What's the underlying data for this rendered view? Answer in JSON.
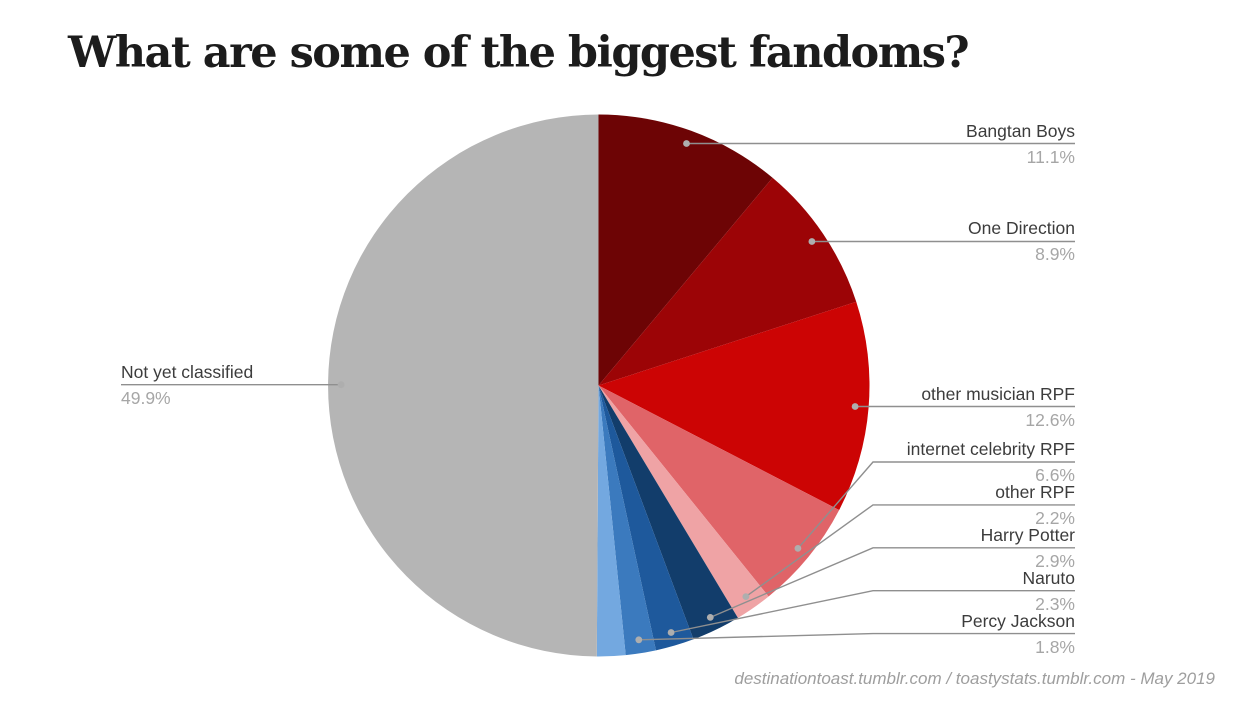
{
  "page": {
    "background": "#ffffff"
  },
  "chart_data": {
    "type": "pie",
    "title": "What are some of the biggest fandoms?",
    "source_note": "destinationtoast.tumblr.com / toastystats.tumblr.com - May 2019",
    "legend_position": "outside-labels",
    "start_angle_deg": 0,
    "direction": "clockwise",
    "slices": [
      {
        "label": "Bangtan Boys",
        "pct": 11.1,
        "display": "11.1%",
        "color": "#6D0405"
      },
      {
        "label": "One Direction",
        "pct": 8.9,
        "display": "8.9%",
        "color": "#9C0406"
      },
      {
        "label": "other musician RPF",
        "pct": 12.6,
        "display": "12.6%",
        "color": "#CC0404"
      },
      {
        "label": "internet celebrity RPF",
        "pct": 6.6,
        "display": "6.6%",
        "color": "#E06468"
      },
      {
        "label": "other RPF",
        "pct": 2.2,
        "display": "2.2%",
        "color": "#EFA3A5"
      },
      {
        "label": "Harry Potter",
        "pct": 2.9,
        "display": "2.9%",
        "color": "#123D6B"
      },
      {
        "label": "Naruto",
        "pct": 2.3,
        "display": "2.3%",
        "color": "#1E599C"
      },
      {
        "label": "Percy Jackson",
        "pct": 1.8,
        "display": "1.8%",
        "color": "#3B7ABE"
      },
      {
        "label": "",
        "pct": 1.7,
        "display": "",
        "color": "#73A8E0"
      },
      {
        "label": "Not yet classified",
        "pct": 49.9,
        "display": "49.9%",
        "color": "#B5B5B5"
      }
    ],
    "colors": {
      "label_text": "#3c3c3c",
      "pct_text": "#a6a6a6",
      "leader_line": "#8f8f8f",
      "leader_dot": "#aeaeae"
    }
  }
}
